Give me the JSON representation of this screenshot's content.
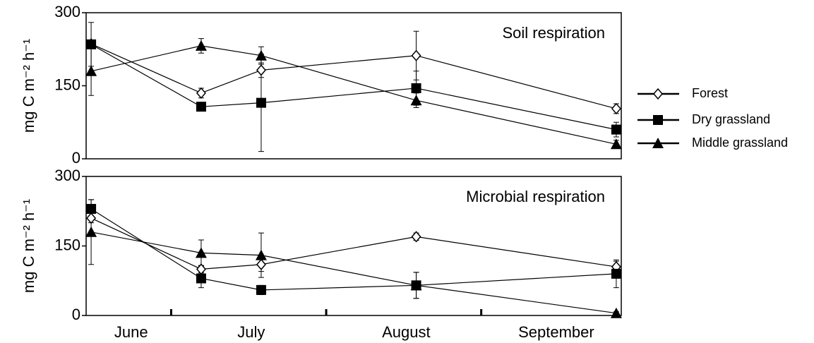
{
  "chart_data": [
    {
      "type": "line",
      "annotation": "Soil respiration",
      "ylabel": "mg C m⁻² h⁻¹",
      "x": [
        166,
        188,
        200,
        231,
        271
      ],
      "xlim": [
        165,
        272
      ],
      "ylim": [
        0,
        300
      ],
      "yticks": [
        0,
        150,
        300
      ],
      "series": [
        {
          "name": "Forest",
          "color": "#000000",
          "marker": "diamond-open",
          "values": [
            236,
            135,
            182,
            212,
            103
          ],
          "errors": [
            5,
            10,
            15,
            50,
            10
          ]
        },
        {
          "name": "Dry grassland",
          "color": "#000000",
          "marker": "square",
          "values": [
            235,
            107,
            115,
            145,
            60
          ],
          "errors": [
            45,
            8,
            100,
            35,
            15
          ]
        },
        {
          "name": "Middle grassland",
          "color": "#000000",
          "marker": "triangle",
          "values": [
            180,
            232,
            212,
            120,
            30
          ],
          "errors": [
            50,
            15,
            18,
            15,
            8
          ]
        }
      ]
    },
    {
      "type": "line",
      "annotation": "Microbial respiration",
      "ylabel": "mg C m⁻² h⁻¹",
      "x": [
        166,
        188,
        200,
        231,
        271
      ],
      "xlim": [
        165,
        272
      ],
      "xticks": [
        {
          "value": 174,
          "label": "June"
        },
        {
          "value": 198,
          "label": "July"
        },
        {
          "value": 229,
          "label": "August"
        },
        {
          "value": 259,
          "label": "September"
        }
      ],
      "xminor_ticks": [
        182,
        213,
        244
      ],
      "ylim": [
        0,
        300
      ],
      "yticks": [
        0,
        150,
        300
      ],
      "series": [
        {
          "color": "#000000",
          "marker": "diamond-open",
          "values": [
            210,
            100,
            110,
            170,
            105
          ],
          "errors": [
            10,
            8,
            15,
            8,
            12
          ]
        },
        {
          "color": "#000000",
          "marker": "square",
          "values": [
            230,
            80,
            55,
            65,
            90
          ],
          "errors": [
            20,
            20,
            10,
            28,
            30
          ]
        },
        {
          "color": "#000000",
          "marker": "triangle",
          "values": [
            180,
            135,
            130,
            65,
            5
          ],
          "errors": [
            70,
            28,
            48,
            28,
            3
          ]
        }
      ]
    }
  ]
}
